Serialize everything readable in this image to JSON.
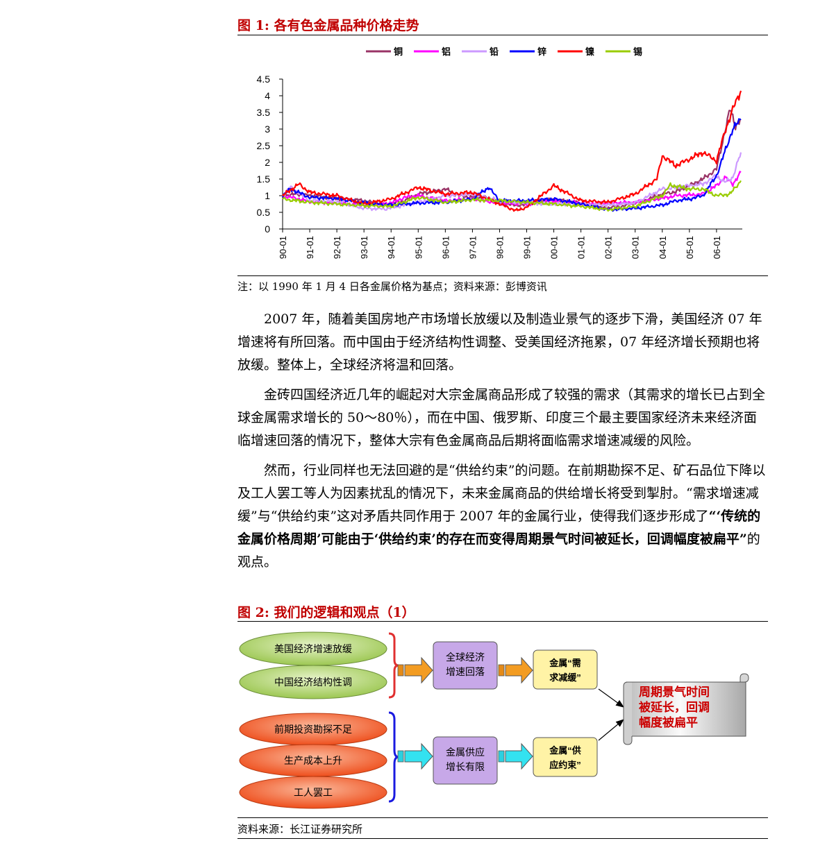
{
  "figure1": {
    "title": "图 1: 各有色金属品种价格走势",
    "note": "注：以 1990 年 1 月 4 日各金属价格为基点；资料来源：彭博资讯"
  },
  "chart_data": {
    "type": "line",
    "x_tick_labels": [
      "90-01",
      "91-01",
      "92-01",
      "93-01",
      "94-01",
      "95-01",
      "96-01",
      "97-01",
      "98-01",
      "99-01",
      "00-01",
      "01-01",
      "02-01",
      "03-01",
      "04-01",
      "05-01",
      "06-01"
    ],
    "y_tick_labels": [
      "0",
      "0.5",
      "1",
      "1.5",
      "2",
      "2.5",
      "3",
      "3.5",
      "4",
      "4.5"
    ],
    "ylim": [
      0,
      4.5
    ],
    "grid": false,
    "legend_position": "top",
    "series": [
      {
        "name": "铜",
        "color": "#993366",
        "x": [
          1990.0,
          1990.5,
          1991.0,
          1992.0,
          1993.0,
          1993.8,
          1994.5,
          1995.0,
          1995.5,
          1996.0,
          1996.5,
          1997.0,
          1997.5,
          1998.0,
          1998.5,
          1999.0,
          1999.5,
          2000.0,
          2001.0,
          2001.8,
          2002.5,
          2003.0,
          2003.5,
          2004.0,
          2004.5,
          2005.0,
          2005.5,
          2006.0,
          2006.3,
          2006.5,
          2006.7,
          2006.9
        ],
        "values": [
          1.0,
          1.05,
          1.0,
          0.92,
          0.85,
          0.72,
          0.85,
          1.05,
          1.12,
          1.2,
          1.0,
          0.95,
          0.95,
          0.78,
          0.72,
          0.72,
          0.85,
          0.88,
          0.78,
          0.62,
          0.68,
          0.78,
          0.9,
          1.05,
          1.12,
          1.3,
          1.5,
          1.8,
          2.9,
          3.6,
          3.1,
          3.3
        ]
      },
      {
        "name": "铝",
        "color": "#ff00ff",
        "x": [
          1990.0,
          1990.5,
          1991.0,
          1992.0,
          1993.0,
          1994.0,
          1994.5,
          1995.0,
          1996.0,
          1997.0,
          1998.0,
          1999.0,
          2000.0,
          2001.0,
          2002.0,
          2003.0,
          2004.0,
          2004.5,
          2005.0,
          2005.5,
          2006.0,
          2006.3,
          2006.6,
          2006.9
        ],
        "values": [
          1.0,
          0.92,
          0.82,
          0.78,
          0.72,
          0.78,
          0.95,
          1.0,
          0.85,
          0.9,
          0.78,
          0.75,
          0.85,
          0.78,
          0.78,
          0.8,
          0.92,
          1.0,
          1.02,
          1.05,
          1.3,
          1.55,
          1.35,
          1.7
        ]
      },
      {
        "name": "铅",
        "color": "#cc99ff",
        "x": [
          1990.0,
          1990.3,
          1991.0,
          1992.0,
          1993.0,
          1993.8,
          1994.5,
          1995.0,
          1996.0,
          1997.0,
          1998.0,
          1999.0,
          2000.0,
          2001.0,
          2002.0,
          2003.0,
          2004.0,
          2004.5,
          2005.0,
          2005.5,
          2006.0,
          2006.3,
          2006.6,
          2006.9
        ],
        "values": [
          1.0,
          1.25,
          0.85,
          0.82,
          0.62,
          0.6,
          0.72,
          0.8,
          1.0,
          1.05,
          0.85,
          0.78,
          0.75,
          0.75,
          0.72,
          0.78,
          1.2,
          1.25,
          1.3,
          1.35,
          1.6,
          1.4,
          1.55,
          2.3
        ]
      },
      {
        "name": "锌",
        "color": "#0000ff",
        "x": [
          1990.0,
          1990.3,
          1991.0,
          1992.0,
          1993.0,
          1994.0,
          1995.0,
          1996.0,
          1997.0,
          1997.6,
          1998.0,
          1999.0,
          2000.0,
          2001.0,
          2002.0,
          2003.0,
          2004.0,
          2004.5,
          2005.0,
          2005.5,
          2006.0,
          2006.3,
          2006.6,
          2006.9
        ],
        "values": [
          1.0,
          1.2,
          0.95,
          0.92,
          0.78,
          0.72,
          0.78,
          0.8,
          0.9,
          1.25,
          0.85,
          0.85,
          0.9,
          0.75,
          0.58,
          0.62,
          0.72,
          0.85,
          0.9,
          1.0,
          1.6,
          2.3,
          3.0,
          3.3
        ]
      },
      {
        "name": "镍",
        "color": "#ff0000",
        "x": [
          1990.0,
          1990.6,
          1991.0,
          1992.0,
          1993.0,
          1994.0,
          1995.0,
          1996.0,
          1997.0,
          1998.0,
          1998.6,
          1999.0,
          2000.0,
          2001.0,
          2002.0,
          2003.0,
          2003.8,
          2004.0,
          2004.5,
          2005.0,
          2005.5,
          2006.0,
          2006.3,
          2006.6,
          2006.9
        ],
        "values": [
          1.0,
          1.35,
          1.1,
          1.0,
          0.75,
          0.9,
          1.25,
          1.05,
          1.1,
          0.75,
          0.55,
          0.65,
          1.3,
          0.85,
          0.8,
          1.05,
          1.5,
          2.2,
          1.9,
          2.1,
          2.3,
          2.05,
          2.9,
          3.6,
          4.15
        ]
      },
      {
        "name": "锡",
        "color": "#99cc00",
        "x": [
          1990.0,
          1991.0,
          1992.0,
          1993.0,
          1994.0,
          1995.0,
          1996.0,
          1997.0,
          1998.0,
          1999.0,
          2000.0,
          2001.0,
          2002.0,
          2003.0,
          2004.0,
          2004.3,
          2005.0,
          2005.5,
          2006.0,
          2006.5,
          2006.9
        ],
        "values": [
          0.9,
          0.8,
          0.75,
          0.7,
          0.68,
          0.95,
          0.8,
          0.88,
          0.85,
          0.8,
          0.75,
          0.68,
          0.58,
          0.68,
          1.0,
          1.32,
          1.2,
          1.2,
          1.0,
          1.05,
          1.45
        ]
      }
    ]
  },
  "paragraphs": [
    {
      "text": "2007 年，随着美国房地产市场增长放缓以及制造业景气的逐步下滑，美国经济 07 年增速将有所回落。而中国由于经济结构性调整、受美国经济拖累，07 年经济增长预期也将放缓。整体上，全球经济将温和回落。"
    },
    {
      "text": "金砖四国经济近几年的崛起对大宗金属商品形成了较强的需求（其需求的增长已占到全球金属需求增长的 50～80％），而在中国、俄罗斯、印度三个最主要国家经济未来经济面临增速回落的情况下，整体大宗有色金属商品后期将面临需求增速减缓的风险。"
    },
    {
      "pre": "然而，行业同样也无法回避的是“供给约束”的问题。在前期勘探不足、矿石品位下降以及工人罢工等人为因素扰乱的情况下，未来金属商品的供给增长将受到掣肘。“需求增速减缓”与“供给约束”这对矛盾共同作用于 2007 年的金属行业，使得我们逐步形成了",
      "bold": "“‘传统的金属价格周期’可能由于‘供给约束’的存在而变得周期景气时间被延长，回调幅度被扁平”",
      "post": "的观点。"
    }
  ],
  "figure2": {
    "title": "图 2: 我们的逻辑和观点（1）",
    "source": "资料来源：长江证券研究所",
    "green_ovals": [
      "美国经济增速放缓",
      "中国经济结构性调"
    ],
    "orange_ovals": [
      "前期投资勘探不足",
      "生产成本上升",
      "工人罢工"
    ],
    "box_global": [
      "全球经济",
      "增速回落"
    ],
    "box_supply": [
      "金属供应",
      "增长有限"
    ],
    "box_demand": [
      "金属“需",
      "求减缓”"
    ],
    "box_constraint": [
      "金属“供",
      "应约束”"
    ],
    "scroll_text": [
      "周期景气时间",
      "被延长，回调",
      "幅度被扁平"
    ],
    "colors": {
      "green": "#b9d97a",
      "orange": "#f36a3c",
      "purple": "#c7a8e8",
      "yellow": "#fff3a6",
      "red_brace": "#e03030",
      "blue_brace": "#1a1ae0",
      "scroll_text": "#cc0000"
    }
  }
}
